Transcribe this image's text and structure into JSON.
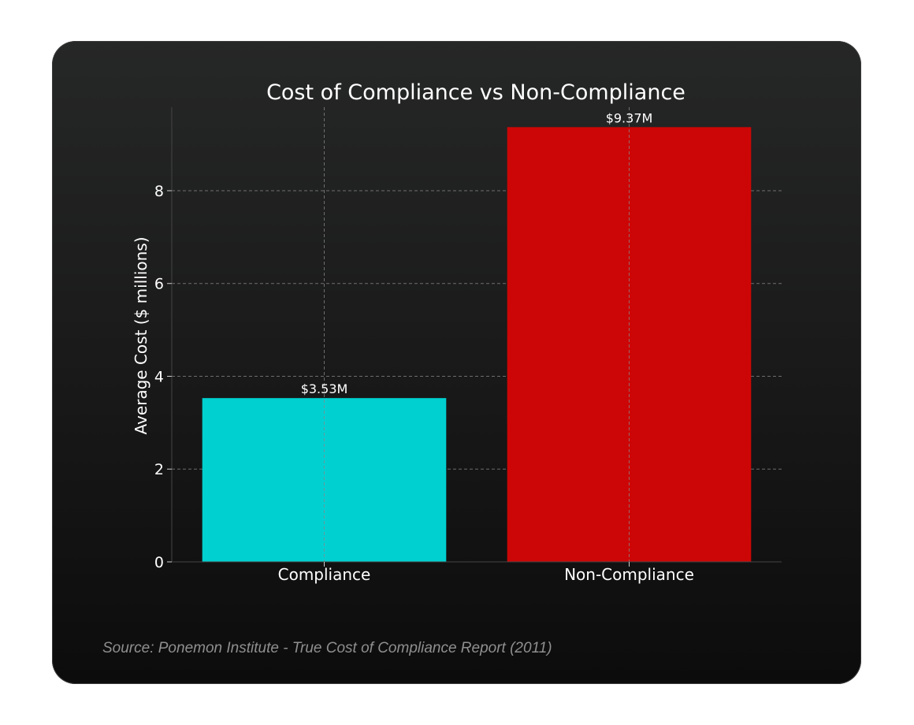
{
  "chart_data": {
    "type": "bar",
    "title": "Cost of Compliance vs Non-Compliance",
    "xlabel": "",
    "ylabel": "Average Cost ($ millions)",
    "categories": [
      "Compliance",
      "Non-Compliance"
    ],
    "values": [
      3.53,
      9.37
    ],
    "data_labels": [
      "$3.53M",
      "$9.37M"
    ],
    "yticks": [
      0,
      2,
      4,
      6,
      8
    ],
    "ylim": [
      0,
      9.8
    ],
    "grid": true,
    "legend": "none",
    "colors": [
      "#00d0d0",
      "#cc0606"
    ]
  },
  "source": "Source: Ponemon Institute - True Cost of Compliance Report (2011)",
  "colors": {
    "background": "#1c1c1c",
    "grid": "#8a8a8a",
    "text": "#ffffff",
    "source_text": "#8f8f8f"
  }
}
